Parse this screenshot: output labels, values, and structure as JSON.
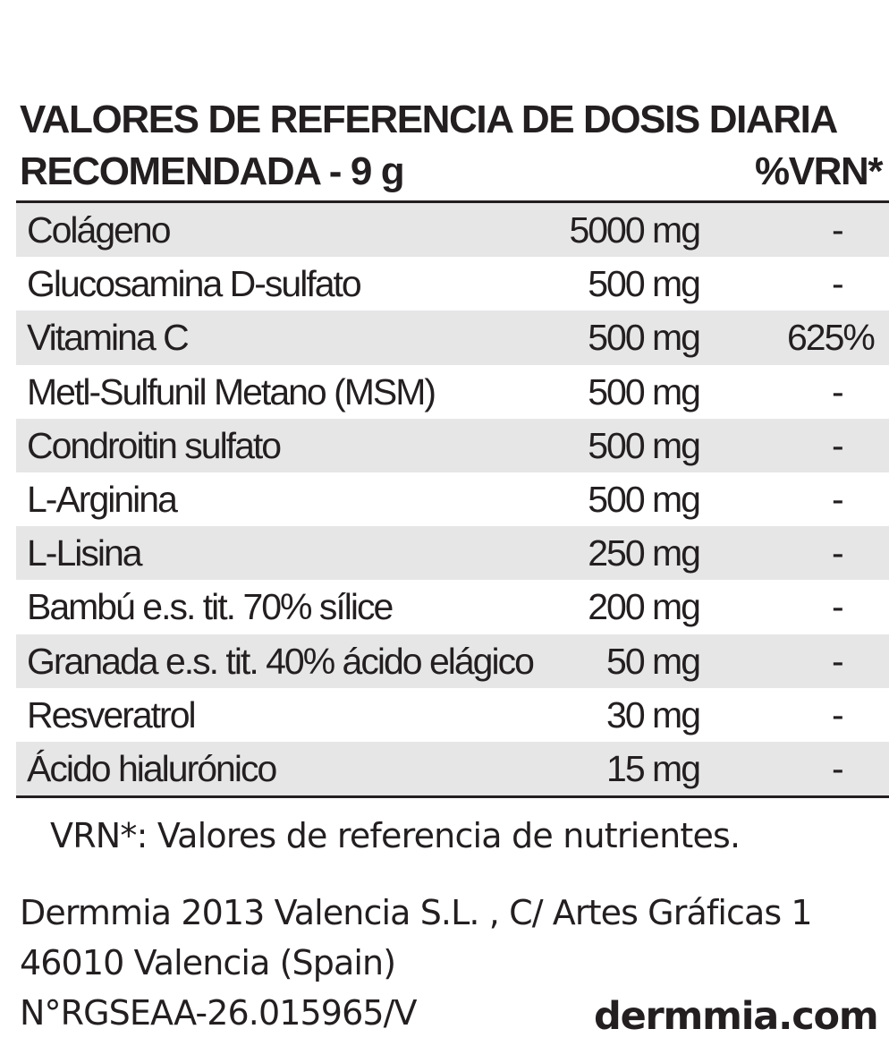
{
  "table": {
    "heading_line1": "VALORES DE REFERENCIA DE DOSIS DIARIA",
    "heading_line2": "RECOMENDADA - 9 g",
    "vrn_heading": "%VRN*",
    "rows": [
      {
        "name": "Colágeno",
        "amount": "5000 mg",
        "vrn": "-"
      },
      {
        "name": "Glucosamina D-sulfato",
        "amount": "500 mg",
        "vrn": "-"
      },
      {
        "name": "Vitamina C",
        "amount": "500 mg",
        "vrn": "625%"
      },
      {
        "name": "Metl-Sulfunil Metano (MSM)",
        "amount": "500 mg",
        "vrn": "-"
      },
      {
        "name": "Condroitin sulfato",
        "amount": "500 mg",
        "vrn": "-"
      },
      {
        "name": "L-Arginina",
        "amount": "500 mg",
        "vrn": "-"
      },
      {
        "name": "L-Lisina",
        "amount": "250 mg",
        "vrn": "-"
      },
      {
        "name": "Bambú e.s. tit. 70% sílice",
        "amount": "200 mg",
        "vrn": "-"
      },
      {
        "name": "Granada e.s. tit. 40% ácido elágico",
        "amount": "50 mg",
        "vrn": "-"
      },
      {
        "name": "Resveratrol",
        "amount": "30 mg",
        "vrn": "-"
      },
      {
        "name": "Ácido hialurónico",
        "amount": "15 mg",
        "vrn": "-"
      }
    ]
  },
  "footnote": "VRN*: Valores de referencia de nutrientes.",
  "company": {
    "line1": "Dermmia 2013 Valencia S.L. , C/ Artes Gráficas 1",
    "line2": "46010 Valencia (Spain)",
    "line3": "N°RGSEAA-26.015965/V",
    "website": "dermmia.com"
  },
  "colors": {
    "text": "#231f20",
    "row_shade": "#e6e6e7"
  }
}
